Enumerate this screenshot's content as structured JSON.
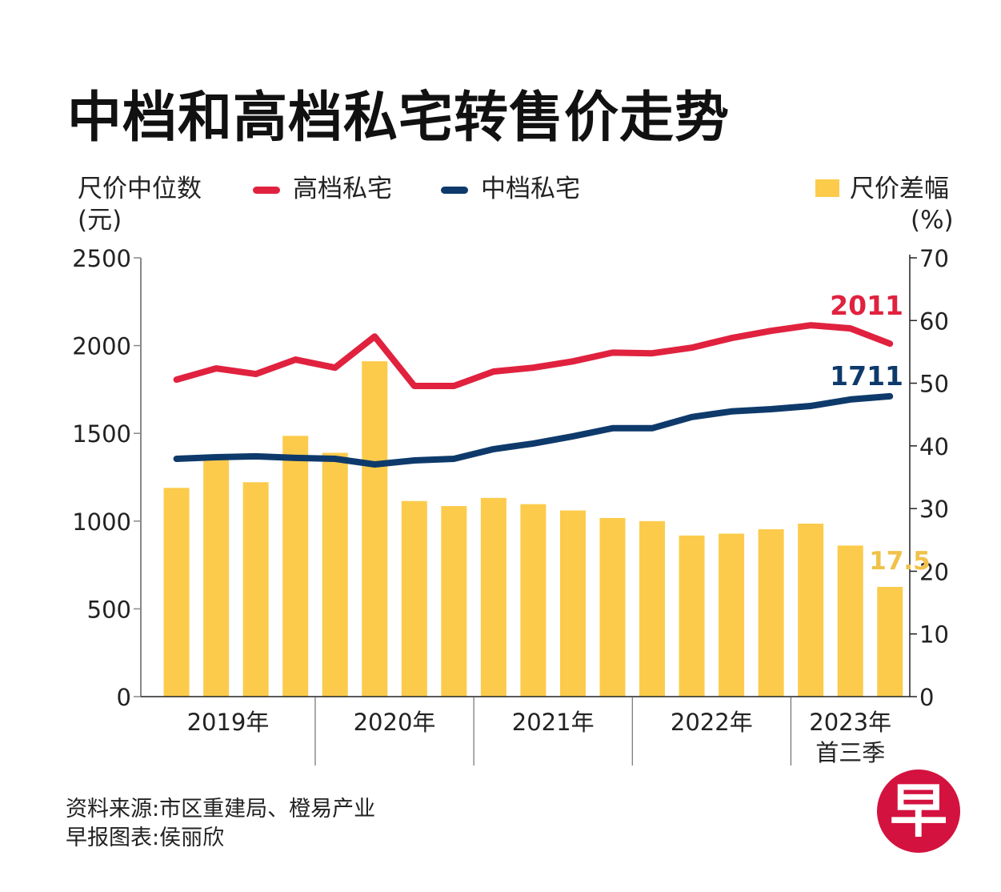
{
  "title": "中档和高档私宅转售价走势",
  "left_axis_label_line1": "尺价中位数",
  "left_axis_label_line2": "(元)",
  "right_axis_label_line1": "尺价差幅",
  "right_axis_label_line2": "(%)",
  "legend": [
    {
      "label": "高档私宅",
      "color": "#e0223f"
    },
    {
      "label": "中档私宅",
      "color": "#0e3a6b"
    },
    {
      "label": "尺价差幅",
      "color": "#fccb4b"
    }
  ],
  "footer": {
    "source": "资料来源:市区重建局、橙易产业",
    "credit": "早报图表:侯丽欣"
  },
  "logo_char": "早",
  "chart_data": {
    "type": "bar+line",
    "title": "中档和高档私宅转售价走势",
    "x": [
      "2019Q1",
      "2019Q2",
      "2019Q3",
      "2019Q4",
      "2020Q1",
      "2020Q2",
      "2020Q3",
      "2020Q4",
      "2021Q1",
      "2021Q2",
      "2021Q3",
      "2021Q4",
      "2022Q1",
      "2022Q2",
      "2022Q3",
      "2022Q4",
      "2023Q1",
      "2023Q2",
      "2023Q3"
    ],
    "year_groups": [
      {
        "label": "2019年",
        "sublabel": "",
        "quarters": 4
      },
      {
        "label": "2020年",
        "sublabel": "",
        "quarters": 4
      },
      {
        "label": "2021年",
        "sublabel": "",
        "quarters": 4
      },
      {
        "label": "2022年",
        "sublabel": "",
        "quarters": 4
      },
      {
        "label": "2023年",
        "sublabel": "首三季",
        "quarters": 3
      }
    ],
    "left_axis": {
      "label": "尺价中位数(元)",
      "ylim": [
        0,
        2500
      ],
      "ticks": [
        0,
        500,
        1000,
        1500,
        2000,
        2500
      ]
    },
    "right_axis": {
      "label": "尺价差幅(%)",
      "ylim": [
        0,
        70
      ],
      "ticks": [
        0,
        10,
        20,
        30,
        40,
        50,
        60,
        70
      ]
    },
    "series": [
      {
        "name": "尺价差幅",
        "type": "bar",
        "axis": "right",
        "color": "#fccb4b",
        "values": [
          33.3,
          37.8,
          34.2,
          41.6,
          38.9,
          53.5,
          31.2,
          30.4,
          31.7,
          30.7,
          29.7,
          28.5,
          28.0,
          25.7,
          26.0,
          26.7,
          27.6,
          24.1,
          17.5
        ],
        "end_label": "17.5"
      },
      {
        "name": "高档私宅",
        "type": "line",
        "axis": "left",
        "color": "#e0223f",
        "values": [
          1806,
          1870,
          1838,
          1920,
          1874,
          2052,
          1770,
          1770,
          1852,
          1874,
          1910,
          1960,
          1956,
          1988,
          2043,
          2084,
          2116,
          2098,
          2011
        ],
        "end_label": "2011"
      },
      {
        "name": "中档私宅",
        "type": "line",
        "axis": "left",
        "color": "#0e3a6b",
        "values": [
          1355,
          1364,
          1369,
          1360,
          1355,
          1323,
          1346,
          1355,
          1410,
          1442,
          1483,
          1529,
          1529,
          1593,
          1625,
          1638,
          1656,
          1693,
          1711
        ],
        "end_label": "1711"
      }
    ],
    "grid": false,
    "legend_position": "top"
  }
}
